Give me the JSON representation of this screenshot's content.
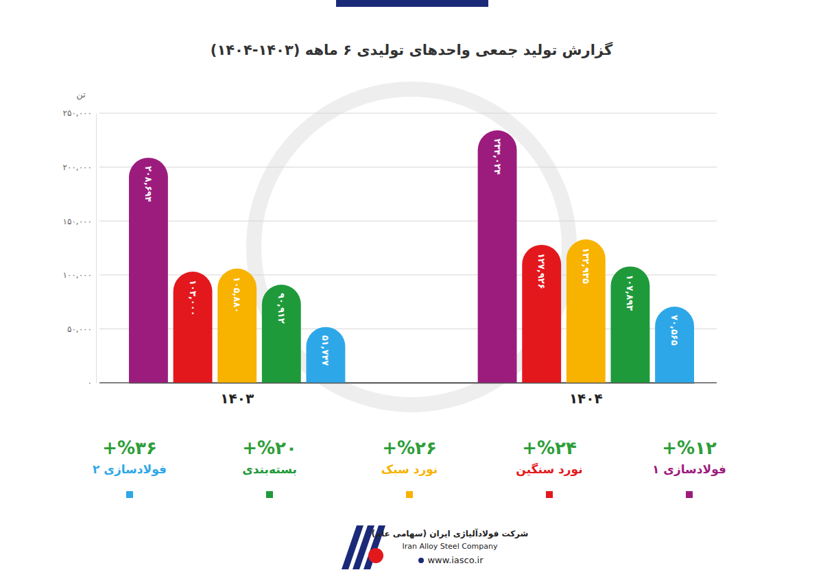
{
  "chart_data": {
    "type": "bar",
    "title": "گزارش تولید جمعی واحدهای تولیدی ۶ ماهه (۱۴۰۳-۱۴۰۴)",
    "y_label": "تن",
    "categories": [
      "۱۴۰۳",
      "۱۴۰۴"
    ],
    "series": [
      {
        "name": "فولادسازی ۱",
        "color": "#9c1c7e",
        "values": [
          208694,
          234024
        ],
        "value_labels": [
          "۲۰۸,۶۹۴",
          "۲۳۴,۰۲۴"
        ],
        "change_label": "+%۱۲"
      },
      {
        "name": "نورد سنگین",
        "color": "#e3181d",
        "values": [
          103000,
          127926
        ],
        "value_labels": [
          "۱۰۳,۰۰۰",
          "۱۲۷,۹۲۶"
        ],
        "change_label": "+%۲۴"
      },
      {
        "name": "نورد سبک",
        "color": "#f7b300",
        "values": [
          105880,
          132935
        ],
        "value_labels": [
          "۱۰۵,۸۸۰",
          "۱۳۲,۹۳۵"
        ],
        "change_label": "+%۲۶"
      },
      {
        "name": "بسته‌بندی",
        "color": "#1f9a3a",
        "values": [
          90912,
          107893
        ],
        "value_labels": [
          "۹۰,۹۱۲",
          "۱۰۷,۸۹۳"
        ],
        "change_label": "+%۲۰"
      },
      {
        "name": "فولادسازی ۲",
        "color": "#2ea7e8",
        "values": [
          51747,
          70565
        ],
        "value_labels": [
          "۵۱,۷۴۷",
          "۷۰,۵۶۵"
        ],
        "change_label": "+%۳۶"
      }
    ],
    "ylim": [
      0,
      250000
    ],
    "yticks": [
      {
        "value": 0,
        "label": "۰"
      },
      {
        "value": 50000,
        "label": "۵۰,۰۰۰"
      },
      {
        "value": 100000,
        "label": "۱۰۰,۰۰۰"
      },
      {
        "value": 150000,
        "label": "۱۵۰,۰۰۰"
      },
      {
        "value": 200000,
        "label": "۲۰۰,۰۰۰"
      },
      {
        "value": 250000,
        "label": "۲۵۰,۰۰۰"
      }
    ],
    "grid": true,
    "legend": "bottom",
    "data_labels": true
  },
  "footer": {
    "company_fa": "شرکت فولادآلیاژی ایران (سهامی عام)",
    "company_en": "Iran Alloy Steel Company",
    "website": "www.iasco.ir"
  }
}
